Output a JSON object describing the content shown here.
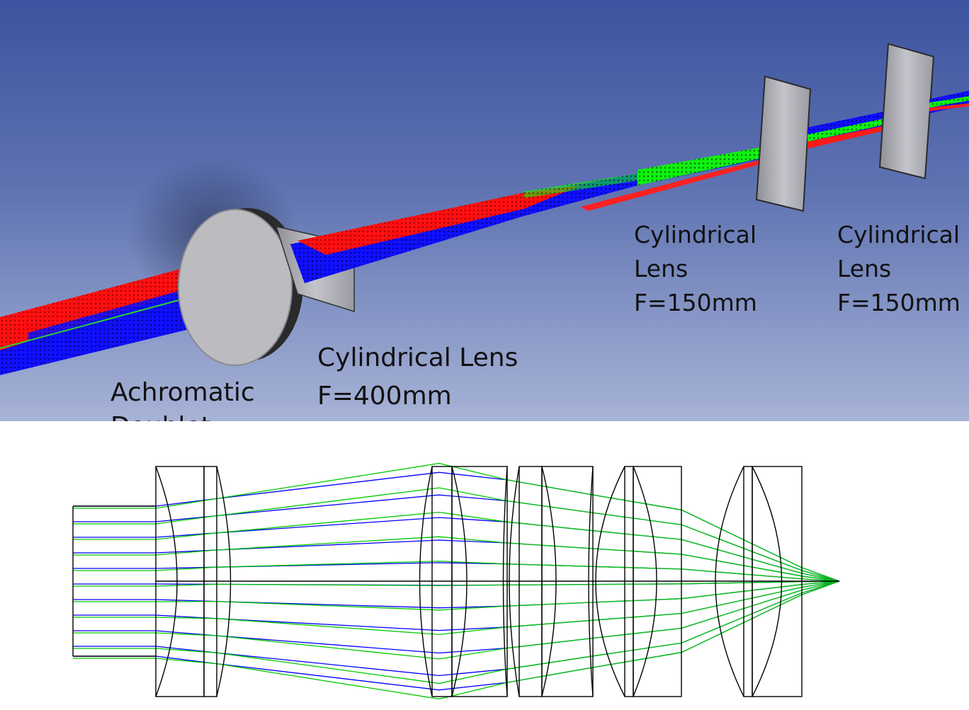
{
  "top_view": {
    "labels": {
      "doublet": [
        "Achromatic",
        "Doublet"
      ],
      "cyl400": [
        "Cylindrical Lens",
        "F=400mm"
      ],
      "cyl150_a": [
        "Cylindrical",
        "Lens",
        "F=150mm"
      ],
      "cyl150_b": [
        "Cylindrical",
        "Lens",
        "F=150mm"
      ]
    },
    "colors": {
      "red": "#ff0000",
      "green": "#00e000",
      "blue": "#0000ff",
      "lens": "#b8b8bd"
    }
  },
  "bottom_view": {
    "colors": {
      "ray_a": "#0000ff",
      "ray_b": "#00c800",
      "outline": "#000000"
    }
  }
}
